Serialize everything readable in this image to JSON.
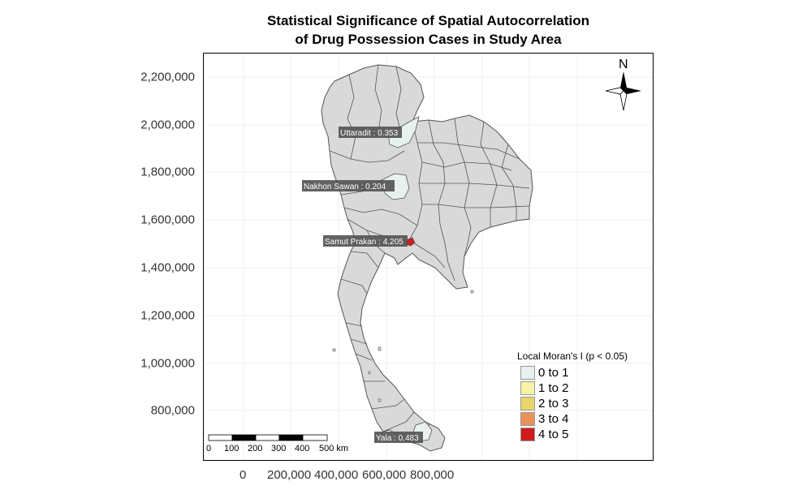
{
  "title": {
    "line1": "Statistical Significance of Spatial Autocorrelation",
    "line2": "of Drug Possession Cases in Study Area"
  },
  "y_axis": {
    "ticks": [
      "2,200,000",
      "2,000,000",
      "1,800,000",
      "1,600,000",
      "1,400,000",
      "1,200,000",
      "1,000,000",
      "800,000"
    ]
  },
  "x_axis": {
    "ticks": [
      "0",
      "200,000",
      "400,000",
      "600,000",
      "800,000"
    ]
  },
  "annotations": [
    {
      "province": "Uttaradit",
      "label": "Uttaradit : 0.353",
      "class": "0 to 1"
    },
    {
      "province": "Nakhon Sawan",
      "label": "Nakhon Sawan : 0.204",
      "class": "0 to 1"
    },
    {
      "province": "Samut Prakan",
      "label": "Samut Prakan : 4.205",
      "class": "4 to 5"
    },
    {
      "province": "Yala",
      "label": "Yala : 0.483",
      "class": "0 to 1"
    }
  ],
  "legend": {
    "title": "Local Moran's I (p < 0.05)",
    "items": [
      {
        "label": "0 to 1",
        "color": "#e8f1ee"
      },
      {
        "label": "1 to 2",
        "color": "#f6f2a6"
      },
      {
        "label": "2 to 3",
        "color": "#e9d56c"
      },
      {
        "label": "3 to 4",
        "color": "#e9925a"
      },
      {
        "label": "4 to 5",
        "color": "#d01c1c"
      }
    ]
  },
  "scale_bar": {
    "labels": [
      "0",
      "100",
      "200",
      "300",
      "400",
      "500 km"
    ]
  },
  "north_arrow": {
    "label": "N"
  },
  "colors": {
    "province_fill": "#d9d9d9",
    "province_stroke": "#555555",
    "label_bg": "#555555"
  }
}
